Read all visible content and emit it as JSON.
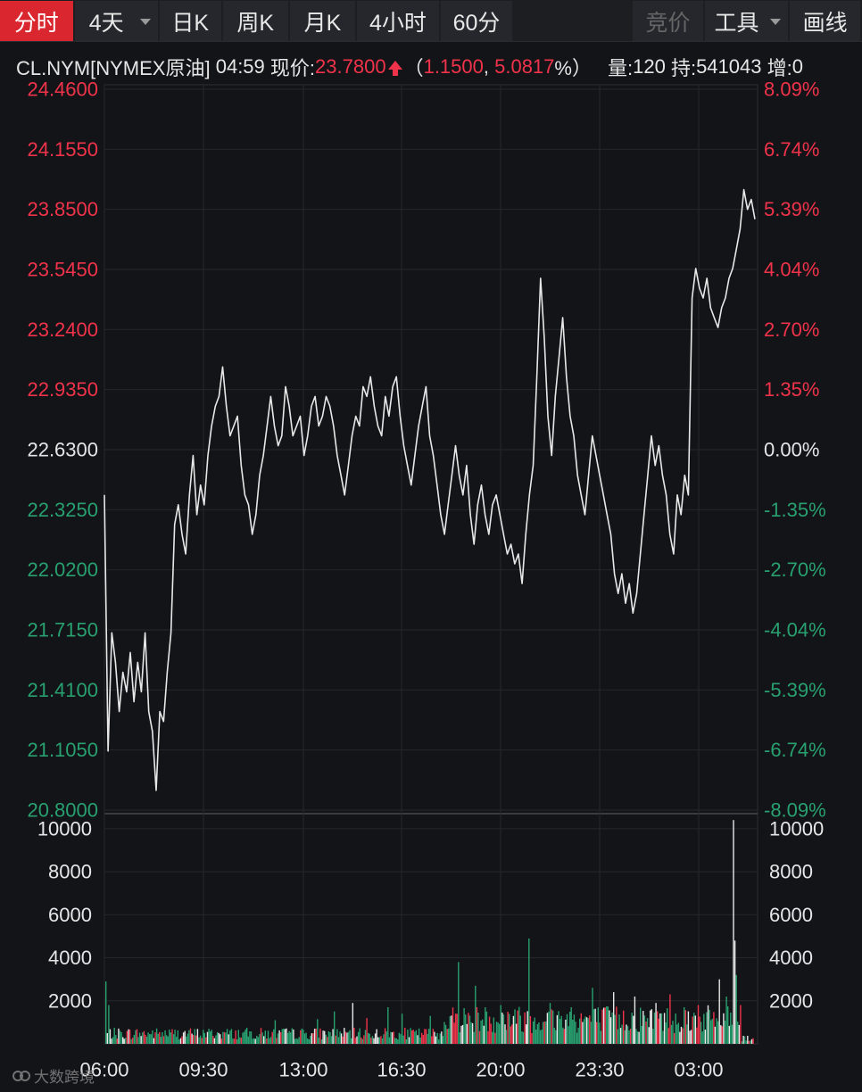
{
  "toolbar": {
    "tabs": [
      {
        "label": "分时",
        "active": true
      },
      {
        "label": "4天",
        "dropdown": true
      },
      {
        "label": "日K"
      },
      {
        "label": "周K"
      },
      {
        "label": "月K"
      },
      {
        "label": "4小时"
      },
      {
        "label": "60分"
      },
      {
        "label": "竞价",
        "disabled": true
      },
      {
        "label": "工具",
        "dropdown": true
      },
      {
        "label": "画线"
      }
    ]
  },
  "quote": {
    "symbol": "CL.NYM[NYMEX原油]",
    "time": "04:59",
    "price_label": "现价:",
    "price": "23.7800",
    "change": "1.1500",
    "change_pct": "5.0817",
    "volume_label": "量:",
    "volume": "120",
    "oi_label": "持:",
    "oi": "541043",
    "incr_label": "增:",
    "incr": "0"
  },
  "colors": {
    "up": "#f0334a",
    "down": "#28a070",
    "line": "#e8e8e8",
    "neutral": "#e6e6e6"
  },
  "chart_data": [
    {
      "type": "line",
      "name": "price",
      "base": 22.63,
      "ylim": [
        20.8,
        24.46
      ],
      "ytick_labels_left": [
        "24.4600",
        "24.1550",
        "23.8500",
        "23.5450",
        "23.2400",
        "22.9350",
        "22.6300",
        "22.3250",
        "22.0200",
        "21.7150",
        "21.4100",
        "21.1050",
        "20.8000"
      ],
      "ytick_labels_right": [
        "8.09%",
        "6.74%",
        "5.39%",
        "4.04%",
        "2.70%",
        "1.35%",
        "0.00%",
        "-1.35%",
        "-2.70%",
        "-4.04%",
        "-5.39%",
        "-6.74%",
        "-8.09%"
      ],
      "xtick_labels": [
        "06:00",
        "09:30",
        "13:00",
        "16:30",
        "20:00",
        "23:30",
        "03:00"
      ],
      "series": [
        {
          "values": [
            22.4,
            21.1,
            21.7,
            21.55,
            21.3,
            21.5,
            21.4,
            21.6,
            21.35,
            21.55,
            21.4,
            21.7,
            21.3,
            21.2,
            20.9,
            21.3,
            21.25,
            21.5,
            21.7,
            22.25,
            22.35,
            22.2,
            22.1,
            22.4,
            22.6,
            22.3,
            22.45,
            22.35,
            22.6,
            22.75,
            22.85,
            22.9,
            23.05,
            22.85,
            22.7,
            22.75,
            22.8,
            22.55,
            22.4,
            22.35,
            22.2,
            22.3,
            22.5,
            22.6,
            22.75,
            22.9,
            22.75,
            22.65,
            22.7,
            22.95,
            22.85,
            22.7,
            22.75,
            22.8,
            22.6,
            22.7,
            22.85,
            22.9,
            22.75,
            22.8,
            22.9,
            22.85,
            22.75,
            22.6,
            22.5,
            22.4,
            22.55,
            22.7,
            22.8,
            22.75,
            22.95,
            22.9,
            23.0,
            22.85,
            22.75,
            22.7,
            22.9,
            22.8,
            22.95,
            23.0,
            22.8,
            22.65,
            22.55,
            22.45,
            22.6,
            22.75,
            22.85,
            22.95,
            22.7,
            22.6,
            22.45,
            22.3,
            22.2,
            22.35,
            22.5,
            22.65,
            22.5,
            22.4,
            22.55,
            22.3,
            22.15,
            22.35,
            22.45,
            22.3,
            22.2,
            22.35,
            22.4,
            22.3,
            22.2,
            22.1,
            22.15,
            22.05,
            22.1,
            21.95,
            22.2,
            22.4,
            22.55,
            23.0,
            23.5,
            23.2,
            22.8,
            22.6,
            22.9,
            23.1,
            23.3,
            23.0,
            22.8,
            22.7,
            22.5,
            22.4,
            22.3,
            22.5,
            22.7,
            22.6,
            22.5,
            22.4,
            22.3,
            22.2,
            22.0,
            21.9,
            22.0,
            21.85,
            21.95,
            21.8,
            21.9,
            22.1,
            22.3,
            22.5,
            22.7,
            22.55,
            22.65,
            22.5,
            22.4,
            22.2,
            22.1,
            22.4,
            22.3,
            22.5,
            22.4,
            23.4,
            23.55,
            23.45,
            23.4,
            23.5,
            23.35,
            23.3,
            23.25,
            23.35,
            23.4,
            23.5,
            23.55,
            23.65,
            23.75,
            23.95,
            23.85,
            23.9,
            23.8
          ]
        }
      ]
    },
    {
      "type": "bar",
      "name": "volume",
      "ylim": [
        0,
        10700
      ],
      "ytick_labels": [
        "10000",
        "8000",
        "6000",
        "4000",
        "2000"
      ]
    }
  ]
}
